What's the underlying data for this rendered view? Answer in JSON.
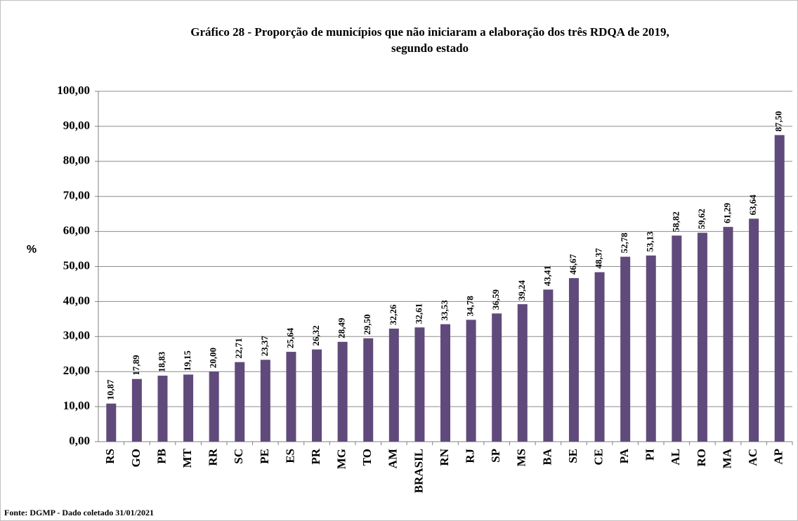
{
  "chart_data": {
    "type": "bar",
    "title": [
      "Gráfico 28 - Proporção de municípios que não iniciaram a elaboração dos três RDQA de 2019,",
      "segundo estado"
    ],
    "y_label": "%",
    "source": "Fonte: DGMP - Dado coletado 31/01/2021",
    "categories": [
      "RS",
      "GO",
      "PB",
      "MT",
      "RR",
      "SC",
      "PE",
      "ES",
      "PR",
      "MG",
      "TO",
      "AM",
      "BRASIL",
      "RN",
      "RJ",
      "SP",
      "MS",
      "BA",
      "SE",
      "CE",
      "PA",
      "PI",
      "AL",
      "RO",
      "MA",
      "AC",
      "AP"
    ],
    "values": [
      10.87,
      17.89,
      18.83,
      19.15,
      20.0,
      22.71,
      23.37,
      25.64,
      26.32,
      28.49,
      29.5,
      32.26,
      32.61,
      33.53,
      34.78,
      36.59,
      39.24,
      43.41,
      46.67,
      48.37,
      52.78,
      53.13,
      58.82,
      59.62,
      61.29,
      63.64,
      87.5
    ],
    "value_labels": [
      "10,87",
      "17,89",
      "18,83",
      "19,15",
      "20,00",
      "22,71",
      "23,37",
      "25,64",
      "26,32",
      "28,49",
      "29,50",
      "32,26",
      "32,61",
      "33,53",
      "34,78",
      "36,59",
      "39,24",
      "43,41",
      "46,67",
      "48,37",
      "52,78",
      "53,13",
      "58,82",
      "59,62",
      "61,29",
      "63,64",
      "87,50"
    ],
    "color": "#604a7b",
    "ylim": [
      0,
      100
    ],
    "yticks": [
      {
        "value": 0,
        "label": "0,00"
      },
      {
        "value": 10,
        "label": "10,00"
      },
      {
        "value": 20,
        "label": "20,00"
      },
      {
        "value": 30,
        "label": "30,00"
      },
      {
        "value": 40,
        "label": "40,00"
      },
      {
        "value": 50,
        "label": "50,00"
      },
      {
        "value": 60,
        "label": "60,00"
      },
      {
        "value": 70,
        "label": "70,00"
      },
      {
        "value": 80,
        "label": "80,00"
      },
      {
        "value": 90,
        "label": "90,00"
      },
      {
        "value": 100,
        "label": "100,00"
      }
    ],
    "grid": true
  }
}
